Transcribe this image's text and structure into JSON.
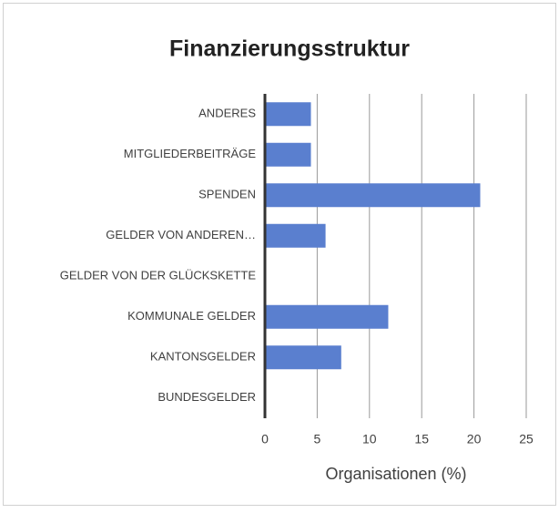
{
  "chart_data": {
    "type": "hbar",
    "title": "Finanzierungsstruktur",
    "categories": [
      "ANDERES",
      "MITGLIEDERBEITRÄGE",
      "SPENDEN",
      "GELDER VON ANDEREN…",
      "GELDER VON DER GLÜCKSKETTE",
      "KOMMUNALE GELDER",
      "KANTONSGELDER",
      "BUNDESGELDER"
    ],
    "values": [
      4.4,
      4.4,
      20.6,
      5.8,
      0,
      11.8,
      7.3,
      0
    ],
    "color": "#5a7fcf",
    "xlabel": "Organisationen (%)",
    "xlim": [
      0,
      25
    ],
    "xticks": [
      0,
      5,
      10,
      15,
      20,
      25
    ],
    "grid": true
  }
}
